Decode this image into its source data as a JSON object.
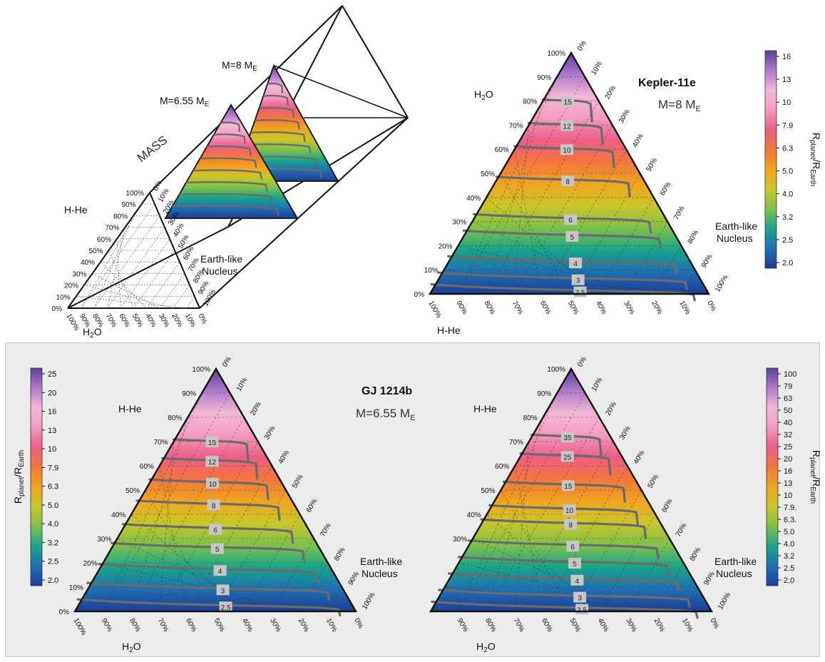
{
  "colors": {
    "contour": "#6b6b6b",
    "colormap": [
      "#1f3d96",
      "#1f6fb2",
      "#1aa58a",
      "#7fc04a",
      "#c9c62a",
      "#f0a520",
      "#f3763c",
      "#ec5d86",
      "#f39ac0",
      "#f4b8d6",
      "#b07acb",
      "#5b3f9c"
    ]
  },
  "diagram": {
    "mass_label": "MASS",
    "m_near": "M=6.55 M",
    "m_far": "M=8 M",
    "sub": "E",
    "vertex_h2o": "H",
    "vertex_h2o_sub": "2",
    "vertex_h2o_tail": "O",
    "vertex_hhe": "H-He",
    "vertex_earth_a": "Earth-like",
    "vertex_earth_b": "Nucleus"
  },
  "chart_data": [
    {
      "type": "heatmap",
      "name": "Kepler-11e",
      "title": "Kepler-11e",
      "subtitle": "M=8 M",
      "subtitle_sub": "E",
      "vertex_top": "H2O",
      "vertex_right": [
        "Earth-like",
        "Nucleus"
      ],
      "vertex_bottom_left": "H-He",
      "left_ticks": [
        "0%",
        "10%",
        "20%",
        "30%",
        "40%",
        "50%",
        "60%",
        "70%",
        "80%",
        "90%",
        "100%"
      ],
      "right_ticks": [
        "0%",
        "10%",
        "20%",
        "30%",
        "40%",
        "50%",
        "60%",
        "70%",
        "80%",
        "90%",
        "100%"
      ],
      "bottom_ticks": [
        "100%",
        "90%",
        "80%",
        "70%",
        "60%",
        "50%",
        "40%",
        "30%",
        "20%",
        "10%",
        "0%"
      ],
      "colorbar": {
        "label_main": "R",
        "label_sub1": "planet",
        "label_mid": "/R",
        "label_sub2": "Earth",
        "ticks": [
          "16",
          "13",
          "10",
          "7.9",
          "6.3",
          "5.0",
          "4.0",
          "3.2",
          "2.5",
          "2.0"
        ]
      },
      "contours": [
        {
          "label": "15",
          "level": 0.8
        },
        {
          "label": "12",
          "level": 0.7
        },
        {
          "label": "10",
          "level": 0.6
        },
        {
          "label": "8",
          "level": 0.47
        },
        {
          "label": "6",
          "level": 0.31
        },
        {
          "label": "5",
          "level": 0.24
        },
        {
          "label": "4",
          "level": 0.13
        },
        {
          "label": "3",
          "level": 0.06
        },
        {
          "label": "2.5",
          "level": 0.01
        }
      ]
    },
    {
      "type": "heatmap",
      "name": "GJ 1214b (H-He)",
      "title": "GJ 1214b",
      "subtitle": "M=6.55 M",
      "subtitle_sub": "E",
      "vertex_top": "H-He",
      "vertex_right": [
        "Earth-like",
        "Nucleus"
      ],
      "vertex_bottom_left": "H2O",
      "left_ticks": [
        "0%",
        "10%",
        "20%",
        "30%",
        "40%",
        "50%",
        "60%",
        "70%",
        "80%",
        "90%",
        "100%"
      ],
      "right_ticks": [
        "0%",
        "10%",
        "20%",
        "30%",
        "40%",
        "50%",
        "60%",
        "70%",
        "80%",
        "90%",
        "100%"
      ],
      "bottom_ticks": [
        "100%",
        "90%",
        "80%",
        "70%",
        "60%",
        "50%",
        "40%",
        "30%",
        "20%",
        "10%",
        "0%"
      ],
      "colorbar": {
        "label_main": "R",
        "label_sub1": "planet",
        "label_mid": "/R",
        "label_sub2": "Earth",
        "ticks": [
          "25",
          "20",
          "16",
          "13",
          "10",
          "7.9",
          "6.3",
          "5.0",
          "4.0",
          "3.2",
          "2.5",
          "2.0"
        ]
      },
      "contours": [
        {
          "label": "15",
          "level": 0.7
        },
        {
          "label": "12",
          "level": 0.62
        },
        {
          "label": "10",
          "level": 0.53
        },
        {
          "label": "8",
          "level": 0.44
        },
        {
          "label": "6",
          "level": 0.34
        },
        {
          "label": "5",
          "level": 0.26
        },
        {
          "label": "4",
          "level": 0.17
        },
        {
          "label": "3",
          "level": 0.09
        },
        {
          "label": "2.5",
          "level": 0.02
        }
      ]
    },
    {
      "type": "heatmap",
      "name": "GJ 1214b (H-He, extended)",
      "vertex_top": "H-He",
      "vertex_right": [
        "Earth-like",
        "Nucleus"
      ],
      "vertex_bottom_left": "H2O",
      "left_ticks": [
        "",
        "",
        "",
        "30%",
        "40%",
        "50%",
        "60%",
        "70%",
        "80%",
        "90%",
        "100%"
      ],
      "right_ticks": [
        "0%",
        "10%",
        "20%",
        "30%",
        "40%",
        "50%",
        "60%",
        "70%",
        "80%",
        "90%",
        "100%"
      ],
      "bottom_ticks": [
        "",
        "90%",
        "80%",
        "70%",
        "60%",
        "50%",
        "40%",
        "30%",
        "20%",
        "10%",
        "0%"
      ],
      "colorbar": {
        "label_main": "R",
        "label_sub1": "planet",
        "label_mid": "/R",
        "label_sub2": "Earth",
        "ticks": [
          "100",
          "79",
          "63",
          "50",
          "40",
          "32",
          "25",
          "20",
          "16",
          "13",
          "10",
          "7.9.",
          "6.3.",
          "5.0",
          "4.0",
          "3.2",
          "2.5",
          "2.0"
        ]
      },
      "contours": [
        {
          "label": "35",
          "level": 0.72
        },
        {
          "label": "25",
          "level": 0.64
        },
        {
          "label": "15",
          "level": 0.52
        },
        {
          "label": "10",
          "level": 0.42
        },
        {
          "label": "8",
          "level": 0.36
        },
        {
          "label": "6",
          "level": 0.27
        },
        {
          "label": "5",
          "level": 0.2
        },
        {
          "label": "4",
          "level": 0.13
        },
        {
          "label": "3",
          "level": 0.06
        },
        {
          "label": "2.5",
          "level": 0.01
        }
      ]
    }
  ]
}
